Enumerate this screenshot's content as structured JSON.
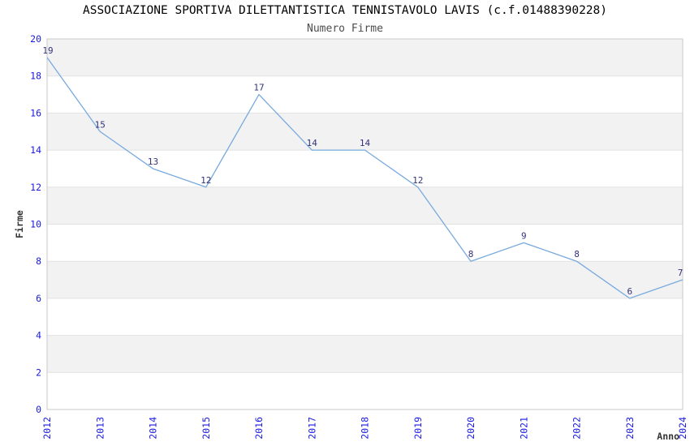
{
  "header": {
    "title": "ASSOCIAZIONE SPORTIVA DILETTANTISTICA TENNISTAVOLO LAVIS (c.f.01488390228)",
    "subtitle": "Numero Firme"
  },
  "chart_data": {
    "type": "line",
    "title": "ASSOCIAZIONE SPORTIVA DILETTANTISTICA TENNISTAVOLO LAVIS (c.f.01488390228)",
    "subtitle": "Numero Firme",
    "x": [
      "2012",
      "2013",
      "2014",
      "2015",
      "2016",
      "2017",
      "2018",
      "2019",
      "2020",
      "2021",
      "2022",
      "2023",
      "2024"
    ],
    "values": [
      19,
      15,
      13,
      12,
      17,
      14,
      14,
      12,
      8,
      9,
      8,
      6,
      7
    ],
    "xlabel": "Anno",
    "ylabel": "Firme",
    "ylim": [
      0,
      20
    ],
    "ytick_step": 2,
    "legend_position": "none",
    "grid": "alternating-horizontal-bands",
    "data_labels": "above-points",
    "colors": {
      "line": "#79aade",
      "data_label": "#33337a",
      "tick_label": "#1b1be0",
      "band_gray": "#f2f2f2",
      "band_white": "#ffffff",
      "band_border": "#e2e2e2",
      "plot_border": "#c9c9c9",
      "axis_title": "#333333",
      "title": "#000000",
      "subtitle": "#4d4d4d"
    }
  }
}
